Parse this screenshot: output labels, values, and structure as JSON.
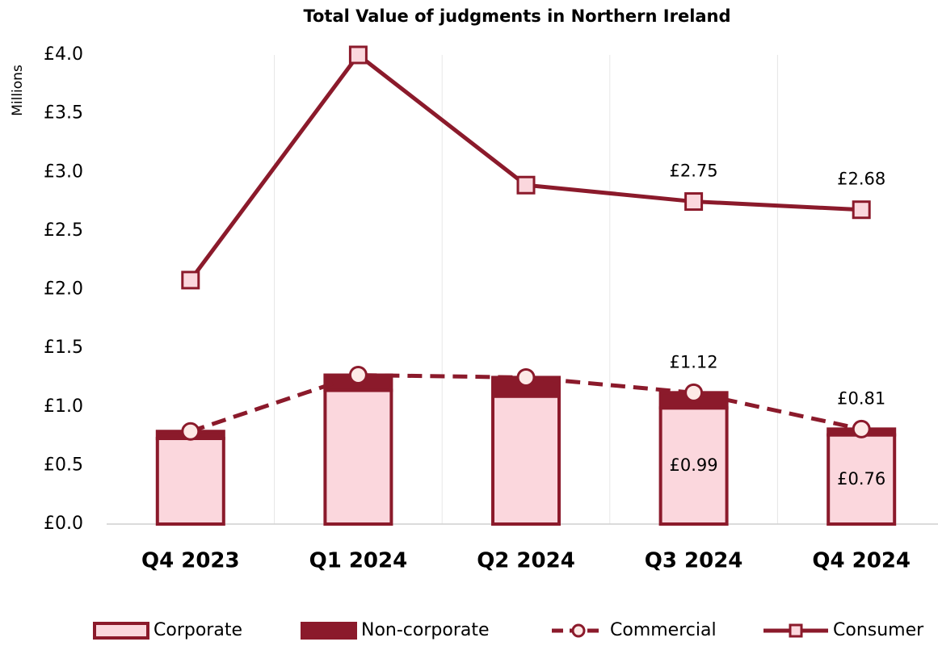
{
  "chart_data": {
    "type": "combo",
    "title": "Total Value of judgments in Northern Ireland",
    "y_label": "Millions",
    "categories": [
      "Q4 2023",
      "Q1 2024",
      "Q2 2024",
      "Q3 2024",
      "Q4 2024"
    ],
    "series": [
      {
        "name": "Corporate",
        "type": "bar",
        "color": "#fbd7dd",
        "edge_color": "#8b1a2b",
        "values": [
          0.73,
          1.14,
          1.09,
          0.99,
          0.76
        ],
        "value_labels": [
          null,
          null,
          null,
          "£0.99",
          "£0.76"
        ]
      },
      {
        "name": "Non-corporate",
        "type": "bar",
        "color": "#8b1a2b",
        "edge_color": "#8b1a2b",
        "values": [
          0.06,
          0.13,
          0.16,
          0.13,
          0.05
        ]
      },
      {
        "name": "Commercial",
        "type": "line",
        "color": "#8b1a2b",
        "linestyle": "dashed",
        "marker": "circle",
        "marker_fill": "#fde9e6",
        "values": [
          0.79,
          1.27,
          1.25,
          1.12,
          0.81
        ],
        "value_labels": [
          null,
          null,
          null,
          "£1.12",
          "£0.81"
        ]
      },
      {
        "name": "Consumer",
        "type": "line",
        "color": "#8b1a2b",
        "linestyle": "solid",
        "marker": "square",
        "marker_fill": "#fbd7dd",
        "values": [
          2.08,
          4.0,
          2.89,
          2.75,
          2.68
        ],
        "value_labels": [
          null,
          null,
          null,
          "£2.75",
          "£2.68"
        ]
      }
    ],
    "ylim": [
      0,
      4.0
    ],
    "yticks": [
      {
        "value": 0,
        "label": "£0.0"
      },
      {
        "value": 0.5,
        "label": "£0.5"
      },
      {
        "value": 1.0,
        "label": "£1.0"
      },
      {
        "value": 1.5,
        "label": "£1.5"
      },
      {
        "value": 2.0,
        "label": "£2.0"
      },
      {
        "value": 2.5,
        "label": "£2.5"
      },
      {
        "value": 3.0,
        "label": "£3.0"
      },
      {
        "value": 3.5,
        "label": "£3.5"
      },
      {
        "value": 4.0,
        "label": "£4.0"
      }
    ],
    "grid": false,
    "legend": "bottom"
  }
}
